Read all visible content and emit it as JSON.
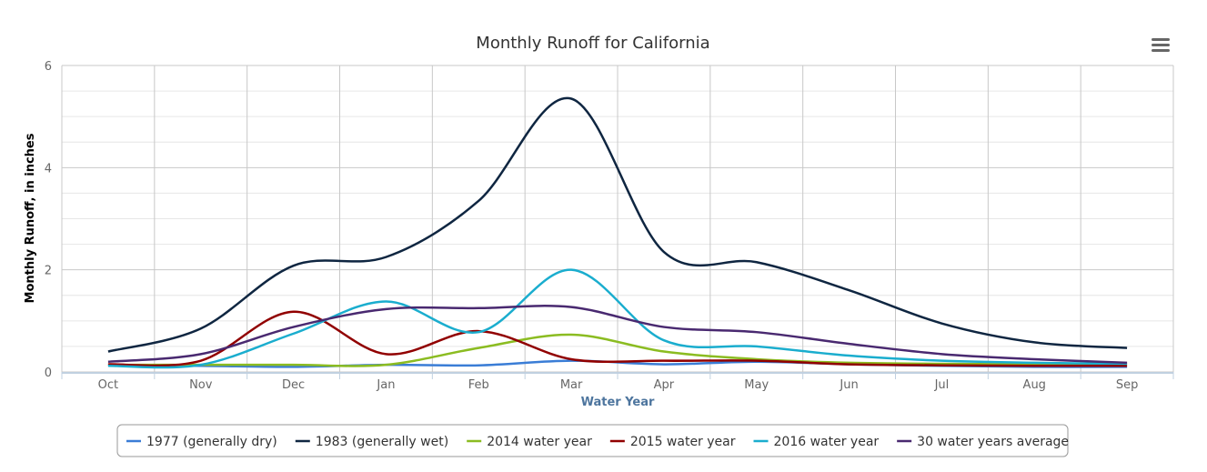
{
  "chart_data": {
    "type": "line",
    "title": "Monthly Runoff for California",
    "xlabel": "Water Year",
    "ylabel": "Monthly Runoff, in inches",
    "categories": [
      "Oct",
      "Nov",
      "Dec",
      "Jan",
      "Feb",
      "Mar",
      "Apr",
      "May",
      "Jun",
      "Jul",
      "Aug",
      "Sep"
    ],
    "ylim": [
      0,
      6
    ],
    "yticks": [
      "0",
      "2",
      "4",
      "6"
    ],
    "grid": true,
    "legend_placement": "bottom",
    "series": [
      {
        "name": "1977 (generally dry)",
        "color": "#3a7dd6",
        "values": [
          0.13,
          0.12,
          0.1,
          0.14,
          0.13,
          0.22,
          0.15,
          0.2,
          0.15,
          0.12,
          0.1,
          0.1
        ]
      },
      {
        "name": "1983 (generally wet)",
        "color": "#0f2641",
        "values": [
          0.4,
          0.85,
          2.08,
          2.25,
          3.35,
          5.35,
          2.35,
          2.15,
          1.6,
          0.95,
          0.58,
          0.47
        ]
      },
      {
        "name": "2014 water year",
        "color": "#8bbc21",
        "values": [
          0.14,
          0.14,
          0.14,
          0.14,
          0.47,
          0.73,
          0.4,
          0.25,
          0.18,
          0.16,
          0.15,
          0.15
        ]
      },
      {
        "name": "2015 water year",
        "color": "#910000",
        "values": [
          0.15,
          0.22,
          1.18,
          0.35,
          0.8,
          0.25,
          0.22,
          0.22,
          0.15,
          0.13,
          0.12,
          0.12
        ]
      },
      {
        "name": "2016 water year",
        "color": "#1aadce",
        "values": [
          0.12,
          0.14,
          0.75,
          1.38,
          0.78,
          2.0,
          0.62,
          0.5,
          0.32,
          0.22,
          0.18,
          0.16
        ]
      },
      {
        "name": "30 water years average",
        "color": "#492970",
        "values": [
          0.2,
          0.35,
          0.88,
          1.23,
          1.25,
          1.27,
          0.88,
          0.78,
          0.55,
          0.35,
          0.25,
          0.18
        ]
      }
    ]
  },
  "menu_icon": "hamburger-menu-icon"
}
